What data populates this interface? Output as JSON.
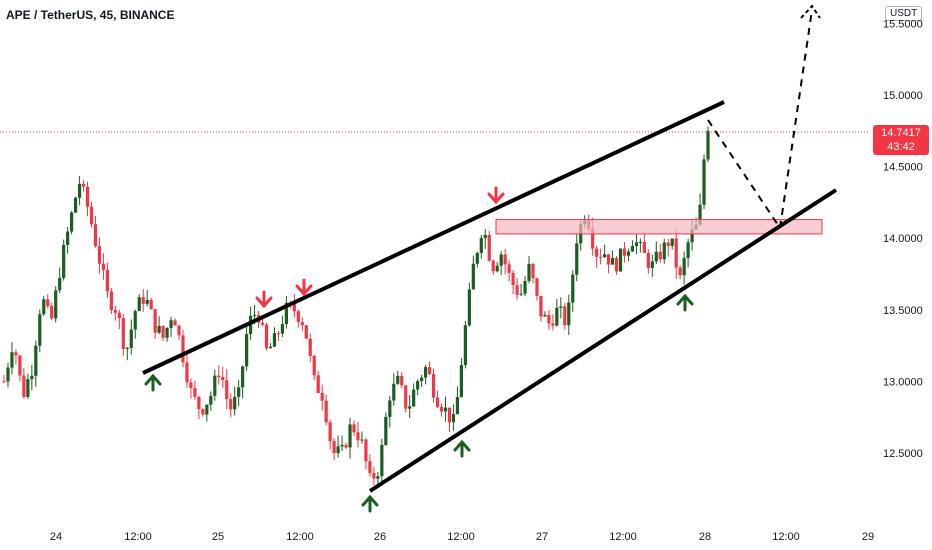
{
  "chart_title": "APE / TetherUS, 45, BINANCE",
  "currency": "USDT",
  "current_price": "14.7417",
  "countdown": "43:42",
  "colors": {
    "up": "#1b5e20",
    "down": "#f23645",
    "price_line": "#f23645",
    "zone": "#f4b8c0"
  },
  "chart_data": {
    "type": "candlestick",
    "ylim": [
      12.0,
      15.6
    ],
    "y_ticks": [
      "12.5000",
      "13.0000",
      "13.5000",
      "14.0000",
      "14.5000",
      "15.0000",
      "15.5000"
    ],
    "x_ticks": [
      "24",
      "12:00",
      "25",
      "12:00",
      "26",
      "12:00",
      "27",
      "12:00",
      "28",
      "12:00",
      "29"
    ],
    "price_axis_ticks": [
      12.5,
      13.0,
      13.5,
      14.0,
      14.5,
      15.0,
      15.5
    ],
    "close_path": [
      13.0,
      13.3,
      12.9,
      13.1,
      13.6,
      13.4,
      13.8,
      14.1,
      14.4,
      14.2,
      13.9,
      13.6,
      13.5,
      13.2,
      13.5,
      13.6,
      13.4,
      13.3,
      13.5,
      13.2,
      12.9,
      12.8,
      12.9,
      13.1,
      12.8,
      12.9,
      13.4,
      13.5,
      13.2,
      13.3,
      13.5,
      13.5,
      13.4,
      13.0,
      12.9,
      12.5,
      12.5,
      12.7,
      12.6,
      12.3,
      12.4,
      12.9,
      13.0,
      12.8,
      13.0,
      13.1,
      12.9,
      12.8,
      12.7,
      13.3,
      13.8,
      14.1,
      13.8,
      13.9,
      13.7,
      13.6,
      13.8,
      13.5,
      13.4,
      13.5,
      13.4,
      14.0,
      14.2,
      13.9,
      13.9,
      13.8,
      13.9,
      14.0,
      13.9,
      13.8,
      13.9,
      14.0,
      13.7,
      14.0,
      14.1,
      14.75
    ],
    "annotations": {
      "down_arrows": 3,
      "up_arrows": 4,
      "resistance_zone": [
        14.03,
        14.13
      ],
      "projection": "dashed path down to channel support then up above 15.5"
    }
  }
}
